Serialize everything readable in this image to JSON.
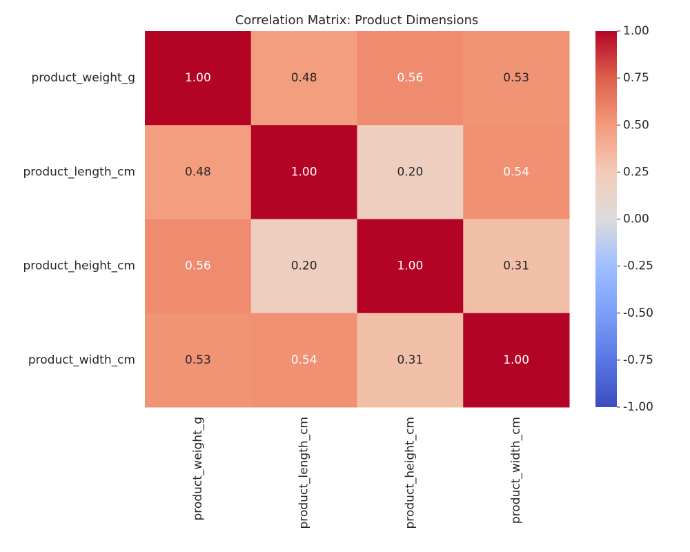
{
  "chart_data": {
    "type": "heatmap",
    "title": "Correlation Matrix: Product Dimensions",
    "x_categories": [
      "product_weight_g",
      "product_length_cm",
      "product_height_cm",
      "product_width_cm"
    ],
    "y_categories": [
      "product_weight_g",
      "product_length_cm",
      "product_height_cm",
      "product_width_cm"
    ],
    "values": [
      [
        1,
        0.48,
        0.56,
        0.53
      ],
      [
        0.48,
        1,
        0.2,
        0.54
      ],
      [
        0.56,
        0.2,
        1,
        0.31
      ],
      [
        0.53,
        0.54,
        0.31,
        1
      ]
    ],
    "value_labels": [
      [
        "1.00",
        "0.48",
        "0.56",
        "0.53"
      ],
      [
        "0.48",
        "1.00",
        "0.20",
        "0.54"
      ],
      [
        "0.56",
        "0.20",
        "1.00",
        "0.31"
      ],
      [
        "0.53",
        "0.54",
        "0.31",
        "1.00"
      ]
    ],
    "colormap": "coolwarm",
    "clim": [
      -1,
      1
    ],
    "cticks": [
      {
        "value": -1,
        "label": "-1.00"
      },
      -0.75,
      {
        "value": -0.5,
        "label": "-0.50"
      },
      -0.25,
      {
        "value": 0,
        "label": "0.00"
      },
      0.25,
      {
        "value": 0.5,
        "label": "0.50"
      },
      0.75,
      {
        "value": 1,
        "label": "1.00"
      }
    ]
  }
}
